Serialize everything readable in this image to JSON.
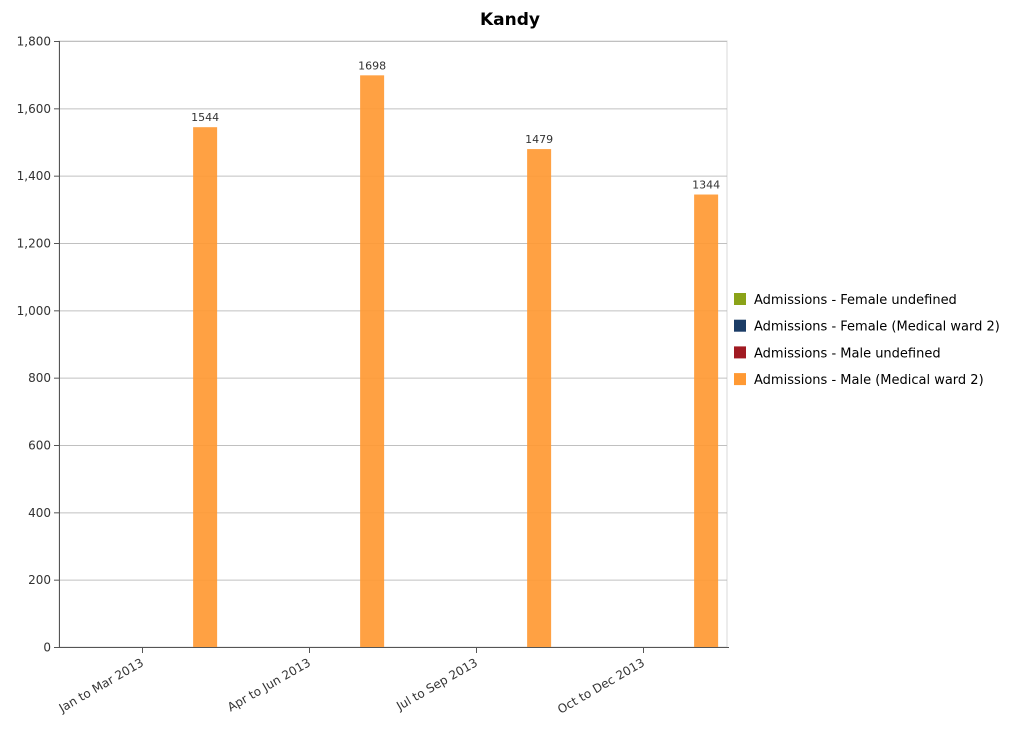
{
  "chart_data": {
    "type": "bar",
    "title": "Kandy",
    "xlabel": "",
    "ylabel": "",
    "categories": [
      "Jan to Mar 2013",
      "Apr to Jun 2013",
      "Jul to Sep 2013",
      "Oct to Dec 2013"
    ],
    "series": [
      {
        "name": "Admissions - Female undefined",
        "color": "#8BA318",
        "values": [
          0,
          0,
          0,
          0
        ]
      },
      {
        "name": "Admissions - Female (Medical ward 2)",
        "color": "#1B3C66",
        "values": [
          0,
          0,
          0,
          0
        ]
      },
      {
        "name": "Admissions - Male undefined",
        "color": "#A11A22",
        "values": [
          0,
          0,
          0,
          0
        ]
      },
      {
        "name": "Admissions - Male (Medical ward 2)",
        "color": "#FF9933",
        "values": [
          1544,
          1698,
          1479,
          1344
        ]
      }
    ],
    "ylim": [
      0,
      1800
    ],
    "yticks": [
      0,
      200,
      400,
      600,
      800,
      1000,
      1200,
      1400,
      1600,
      1800
    ],
    "ytick_labels": [
      "0",
      "200",
      "400",
      "600",
      "800",
      "1,000",
      "1,200",
      "1,400",
      "1,600",
      "1,800"
    ],
    "data_labels": [
      "1544",
      "1698",
      "1479",
      "1344"
    ],
    "grid": true,
    "legend_position": "right"
  }
}
